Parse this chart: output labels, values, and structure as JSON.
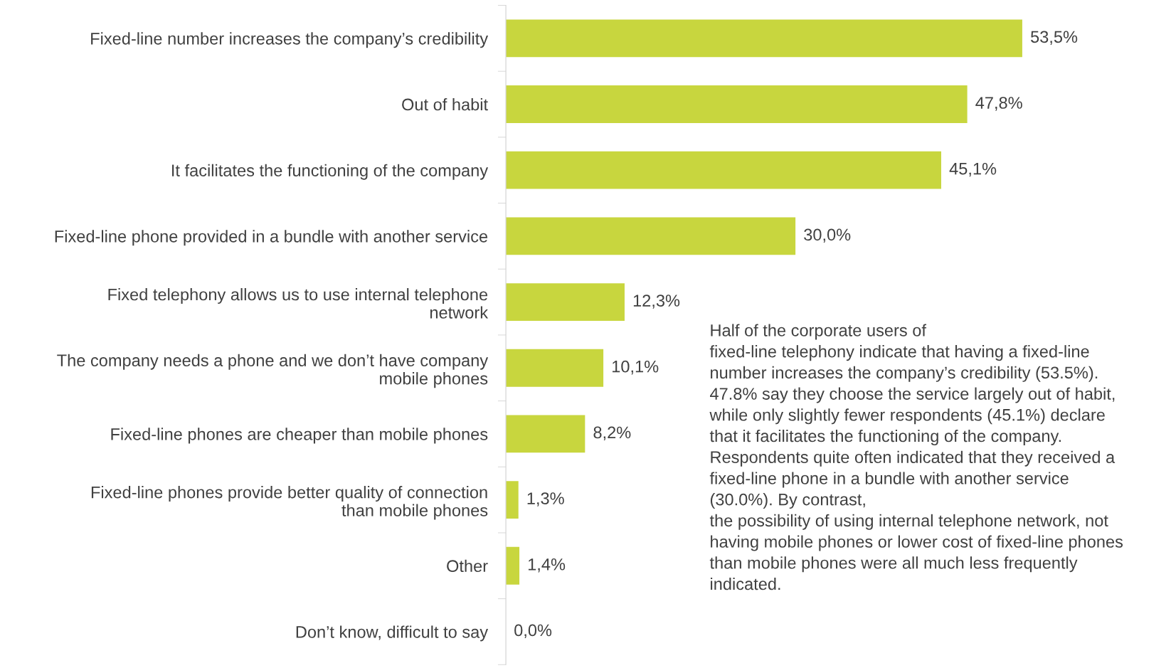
{
  "chart_data": {
    "type": "bar",
    "orientation": "horizontal",
    "categories": [
      "Fixed-line number increases the company’s credibility",
      "Out of habit",
      "It facilitates the functioning of the company",
      "Fixed-line phone provided in a bundle with another service",
      "Fixed telephony allows us to use internal telephone\nnetwork",
      "The company needs a phone and we don’t have company\nmobile phones",
      "Fixed-line phones are cheaper than mobile phones",
      "Fixed-line phones provide better quality of connection\nthan mobile phones",
      "Other",
      "Don’t know, difficult to say"
    ],
    "values": [
      53.5,
      47.8,
      45.1,
      30.0,
      12.3,
      10.1,
      8.2,
      1.3,
      1.4,
      0.0
    ],
    "value_labels": [
      "53,5%",
      "47,8%",
      "45,1%",
      "30,0%",
      "12,3%",
      "10,1%",
      "8,2%",
      "1,3%",
      "1,4%",
      "0,0%"
    ],
    "color": "#c8d63e",
    "tick_labels": "y",
    "grid": false,
    "legend": false,
    "annotations": [
      "Half of the corporate users of\nfixed-line telephony indicate that having a fixed-line\nnumber increases the company’s credibility (53.5%).\n47.8% say they choose the service largely out of habit,\nwhile only slightly fewer respondents (45.1%) declare\nthat it facilitates the functioning of the company.\nRespondents quite often indicated that they received a\nfixed-line phone in a bundle with another service\n(30.0%). By contrast,\nthe possibility of using internal telephone network, not\nhaving mobile phones or lower cost of fixed-line phones\nthan mobile phones were all much less frequently\nindicated."
    ]
  }
}
